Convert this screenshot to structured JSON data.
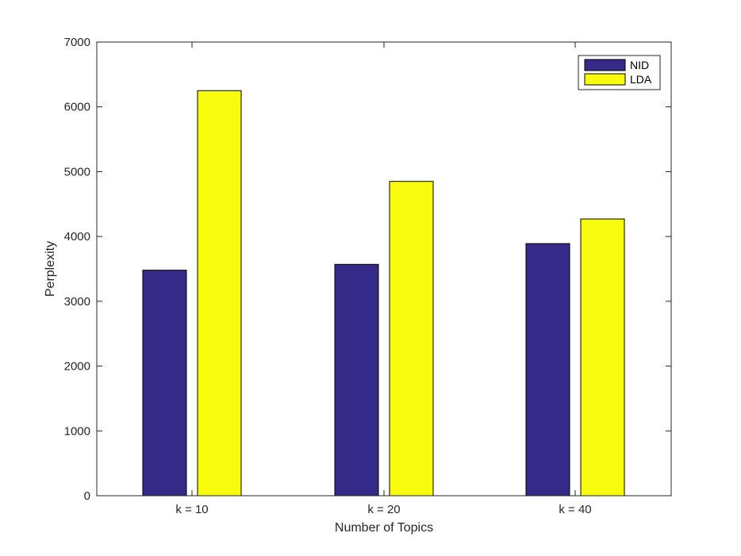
{
  "chart_data": {
    "type": "bar",
    "categories": [
      "k = 10",
      "k = 20",
      "k = 40"
    ],
    "series": [
      {
        "name": "NID",
        "values": [
          3480,
          3570,
          3890
        ],
        "color": "#352a87"
      },
      {
        "name": "LDA",
        "values": [
          6250,
          4850,
          4270
        ],
        "color": "#f9fb0e"
      }
    ],
    "xlabel": "Number of Topics",
    "ylabel": "Perplexity",
    "ylim": [
      0,
      7000
    ],
    "yticks": [
      0,
      1000,
      2000,
      3000,
      4000,
      5000,
      6000,
      7000
    ],
    "grid": false,
    "legend_position": "top-right"
  }
}
